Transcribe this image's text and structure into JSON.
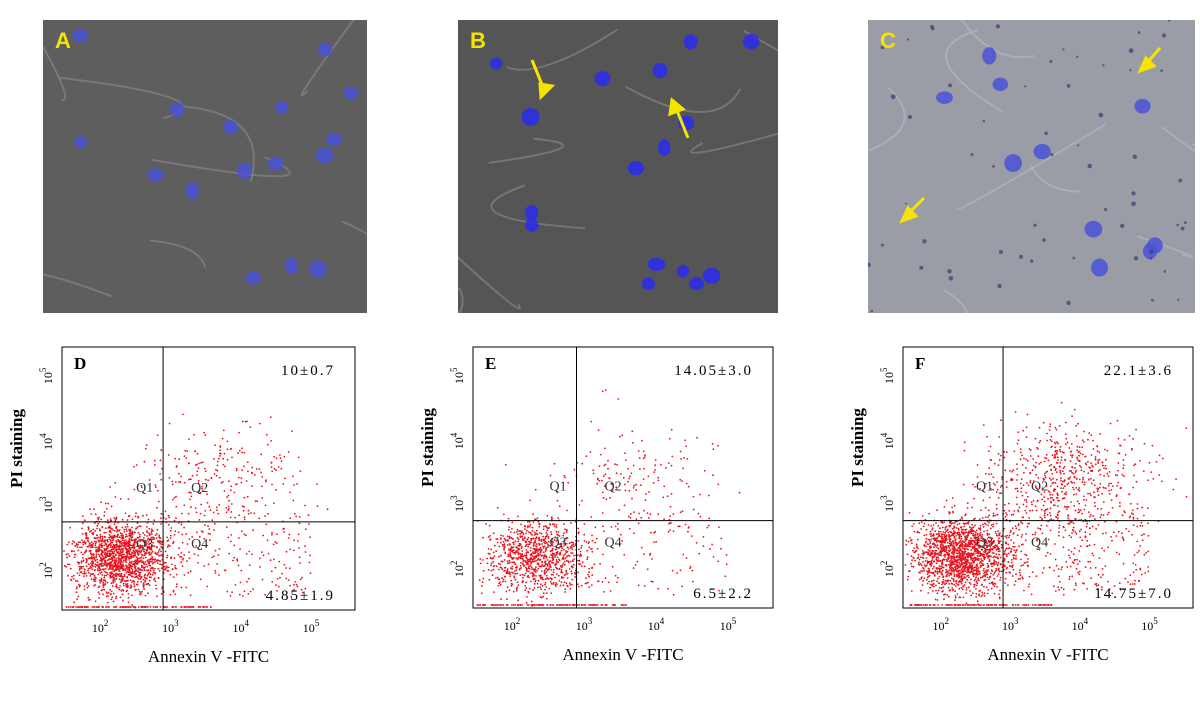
{
  "images": [
    {
      "label": "A"
    },
    {
      "label": "B"
    },
    {
      "label": "C"
    }
  ],
  "plots": [
    {
      "label": "D",
      "upper_right": "10±0.7",
      "lower_right": "4.85±1.9",
      "quadrants": [
        "Q1",
        "Q2",
        "Q3",
        "Q4"
      ],
      "x_label": "Annexin V -FITC",
      "y_label": "PI staining"
    },
    {
      "label": "E",
      "upper_right": "14.05±3.0",
      "lower_right": "6.5±2.2",
      "quadrants": [
        "Q1",
        "Q2",
        "Q3",
        "Q4"
      ],
      "x_label": "Annexin V -FITC",
      "y_label": "PI staining"
    },
    {
      "label": "F",
      "upper_right": "22.1±3.6",
      "lower_right": "14.75±7.0",
      "quadrants": [
        "Q1",
        "Q2",
        "Q3",
        "Q4"
      ],
      "x_label": "Annexin V -FITC",
      "y_label": "PI staining"
    }
  ],
  "tick_base": "10",
  "tick_exponents": [
    "2",
    "3",
    "4",
    "5"
  ]
}
